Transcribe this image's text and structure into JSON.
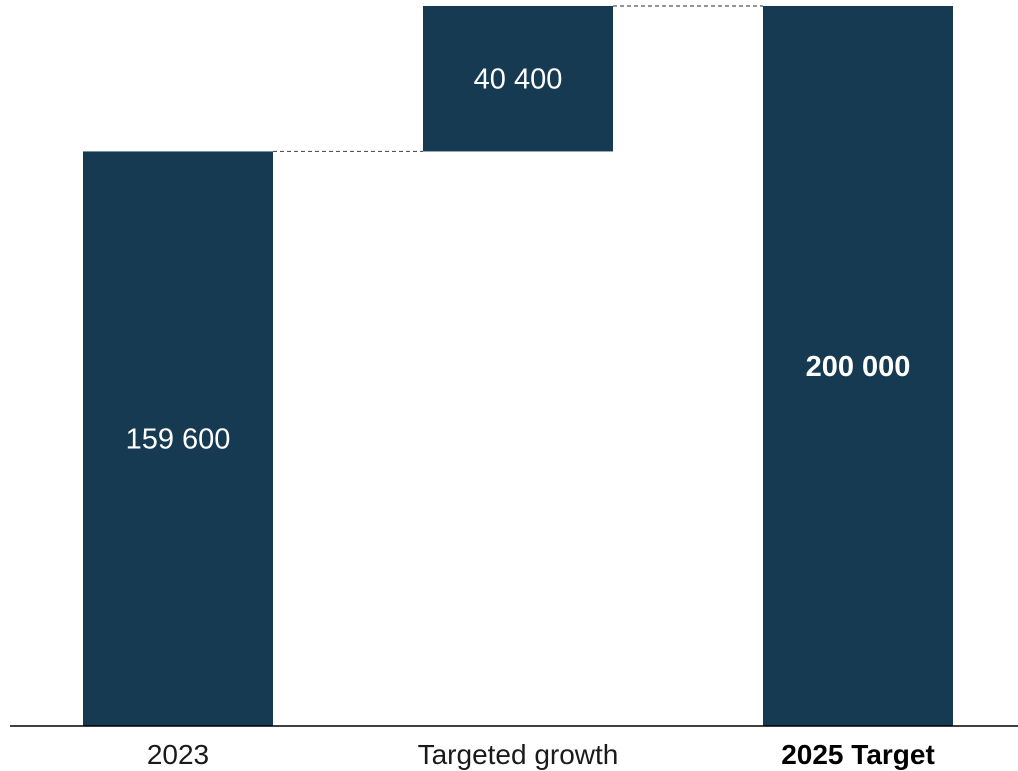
{
  "chart_data": {
    "type": "waterfall",
    "title": "",
    "xlabel": "",
    "ylabel": "",
    "ylim": [
      0,
      200000
    ],
    "grid": false,
    "legend": "none",
    "bar_color": "#173a53",
    "categories": [
      "2023",
      "Targeted growth",
      "2025 Target"
    ],
    "bars": [
      {
        "category": "2023",
        "kind": "total",
        "value": 159600,
        "label": "159 600",
        "emphasis": false
      },
      {
        "category": "Targeted growth",
        "kind": "delta",
        "value": 40400,
        "label": "40 400",
        "emphasis": false
      },
      {
        "category": "2025 Target",
        "kind": "total",
        "value": 200000,
        "label": "200 000",
        "emphasis": true
      }
    ]
  }
}
